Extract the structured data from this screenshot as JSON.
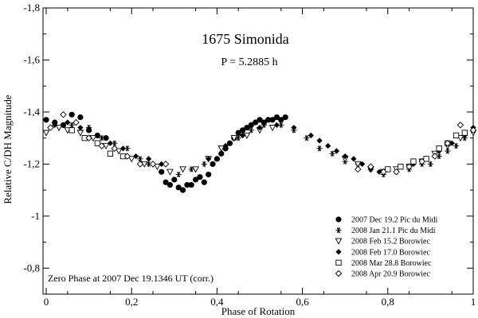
{
  "chart_data": {
    "type": "scatter",
    "title": "1675 Simonida",
    "subtitle": "P = 5.2885 h",
    "xlabel": "Phase of Rotation",
    "ylabel": "Relative C/DH Magnitude",
    "xlim": [
      0,
      1
    ],
    "ylim": [
      -1.8,
      -0.7
    ],
    "y_inverted": true,
    "x_ticks": [
      0,
      0.2,
      0.4,
      0.6,
      0.8,
      1
    ],
    "x_tick_labels": [
      "0",
      "0,2",
      "0,4",
      "0,6",
      "0,8",
      "1"
    ],
    "y_ticks": [
      -1.8,
      -1.6,
      -1.4,
      -1.2,
      -1.0,
      -0.8
    ],
    "y_tick_labels": [
      "-1,8",
      "-1,6",
      "-1,4",
      "-1,2",
      "-1",
      "-0,8"
    ],
    "annotation": "Zero Phase at 2007 Dec 19.1346 UT (corr.)",
    "legend_position": "bottom-right",
    "series": [
      {
        "name": "2007 Dec 19.2 Pic du Midi",
        "marker": "filled-circle",
        "x": [
          0.0,
          0.02,
          0.04,
          0.06,
          0.08,
          0.1,
          0.12,
          0.14,
          0.27,
          0.28,
          0.29,
          0.3,
          0.31,
          0.32,
          0.33,
          0.34,
          0.35,
          0.36,
          0.37,
          0.38,
          0.39,
          0.4,
          0.41,
          0.42,
          0.43,
          0.44,
          0.45,
          0.46,
          0.47,
          0.48,
          0.49,
          0.5,
          0.51,
          0.52,
          0.53,
          0.54,
          0.55,
          0.56
        ],
        "y": [
          -1.37,
          -1.36,
          -1.35,
          -1.39,
          -1.38,
          -1.33,
          -1.31,
          -1.3,
          -1.17,
          -1.13,
          -1.12,
          -1.14,
          -1.11,
          -1.1,
          -1.12,
          -1.12,
          -1.14,
          -1.15,
          -1.13,
          -1.16,
          -1.2,
          -1.22,
          -1.24,
          -1.26,
          -1.28,
          -1.3,
          -1.32,
          -1.33,
          -1.34,
          -1.35,
          -1.36,
          -1.37,
          -1.36,
          -1.37,
          -1.37,
          -1.38,
          -1.37,
          -1.38
        ]
      },
      {
        "name": "2008 Jan 21.1 Pic du Midi",
        "marker": "asterisk",
        "x": [
          0.06,
          0.08,
          0.1,
          0.13,
          0.16,
          0.19,
          0.22,
          0.24,
          0.31,
          0.34,
          0.37,
          0.42,
          0.45,
          0.48,
          0.51,
          0.55,
          0.58,
          0.61,
          0.64,
          0.67,
          0.7,
          0.73,
          0.76,
          0.79,
          0.82,
          0.85,
          0.88,
          0.9,
          0.92,
          0.94,
          0.96,
          0.98
        ],
        "y": [
          -1.35,
          -1.33,
          -1.34,
          -1.3,
          -1.28,
          -1.26,
          -1.22,
          -1.2,
          -1.16,
          -1.18,
          -1.2,
          -1.26,
          -1.3,
          -1.33,
          -1.35,
          -1.35,
          -1.33,
          -1.3,
          -1.26,
          -1.24,
          -1.21,
          -1.2,
          -1.18,
          -1.16,
          -1.17,
          -1.18,
          -1.2,
          -1.2,
          -1.23,
          -1.25,
          -1.27,
          -1.3
        ]
      },
      {
        "name": "2008 Feb 15.2 Borowiec",
        "marker": "open-triangle-down",
        "x": [
          0.0,
          0.03,
          0.05,
          0.08,
          0.11,
          0.14,
          0.17,
          0.2,
          0.23,
          0.26,
          0.29,
          0.32,
          0.35,
          0.38,
          0.41,
          0.44,
          0.47,
          0.5,
          0.53,
          0.7,
          0.73,
          0.76,
          0.79,
          0.82,
          0.85,
          0.88,
          0.91,
          0.94,
          0.97,
          1.0
        ],
        "y": [
          -1.32,
          -1.34,
          -1.33,
          -1.32,
          -1.3,
          -1.27,
          -1.25,
          -1.22,
          -1.2,
          -1.19,
          -1.17,
          -1.18,
          -1.18,
          -1.22,
          -1.26,
          -1.3,
          -1.31,
          -1.33,
          -1.34,
          -1.22,
          -1.2,
          -1.18,
          -1.17,
          -1.18,
          -1.19,
          -1.21,
          -1.24,
          -1.27,
          -1.3,
          -1.32
        ]
      },
      {
        "name": "2008 Feb 17.0 Borowiec",
        "marker": "filled-diamond",
        "x": [
          0.02,
          0.05,
          0.08,
          0.12,
          0.15,
          0.18,
          0.21,
          0.24,
          0.27,
          0.38,
          0.42,
          0.46,
          0.5,
          0.54,
          0.58,
          0.62,
          0.64,
          0.66,
          0.68,
          0.7,
          0.72,
          0.74,
          0.76,
          0.78,
          0.8,
          0.83,
          0.86,
          0.89,
          0.92,
          0.95,
          0.98,
          1.0
        ],
        "y": [
          -1.35,
          -1.36,
          -1.34,
          -1.31,
          -1.28,
          -1.26,
          -1.23,
          -1.22,
          -1.2,
          -1.22,
          -1.27,
          -1.31,
          -1.34,
          -1.35,
          -1.34,
          -1.31,
          -1.29,
          -1.27,
          -1.25,
          -1.23,
          -1.22,
          -1.2,
          -1.18,
          -1.17,
          -1.18,
          -1.19,
          -1.2,
          -1.22,
          -1.25,
          -1.28,
          -1.31,
          -1.34
        ]
      },
      {
        "name": "2008 Mar 28.8 Borowiec",
        "marker": "open-square",
        "x": [
          0.06,
          0.09,
          0.12,
          0.15,
          0.18,
          0.8,
          0.83,
          0.86,
          0.89,
          0.92,
          0.94,
          0.96,
          0.98
        ],
        "y": [
          -1.33,
          -1.3,
          -1.28,
          -1.24,
          -1.23,
          -1.18,
          -1.19,
          -1.21,
          -1.22,
          -1.26,
          -1.28,
          -1.31,
          -1.32
        ]
      },
      {
        "name": "2008 Apr 20.9 Borowiec",
        "marker": "open-diamond",
        "x": [
          0.01,
          0.04,
          0.07,
          0.1,
          0.13,
          0.16,
          0.19,
          0.22,
          0.25,
          0.28,
          0.73,
          0.76,
          0.79,
          0.82,
          0.85,
          0.88,
          0.91,
          0.94,
          0.97,
          1.0
        ],
        "y": [
          -1.34,
          -1.39,
          -1.36,
          -1.3,
          -1.27,
          -1.26,
          -1.23,
          -1.2,
          -1.2,
          -1.2,
          -1.18,
          -1.19,
          -1.17,
          -1.17,
          -1.19,
          -1.21,
          -1.23,
          -1.28,
          -1.35,
          -1.33
        ]
      }
    ]
  }
}
